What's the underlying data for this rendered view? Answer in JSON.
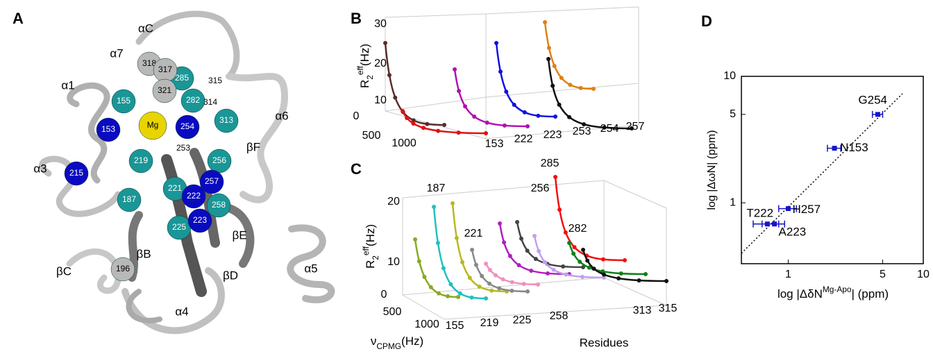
{
  "panel_labels": [
    "A",
    "B",
    "C",
    "D"
  ],
  "panel_a": {
    "structure_labels": [
      "αC",
      "α7",
      "α1",
      "α6",
      "α3",
      "βF",
      "βC",
      "βB",
      "βE",
      "βD",
      "α5",
      "α4"
    ],
    "residues": [
      "285",
      "315",
      "318",
      "317",
      "321",
      "282",
      "314",
      "155",
      "313",
      "153",
      "Mg",
      "254",
      "253",
      "219",
      "256",
      "215",
      "257",
      "221",
      "222",
      "258",
      "187",
      "225",
      "223",
      "196"
    ]
  },
  "panel_b": {
    "y_label": "R",
    "y_label_sub": "2",
    "y_label_sup": "eff",
    "y_label_unit": "(Hz)",
    "z_ticks": [
      "30",
      "20",
      "10",
      "0"
    ],
    "x_ticks": [
      "500",
      "1000"
    ],
    "residues": [
      "153",
      "222",
      "223",
      "253",
      "254",
      "257"
    ]
  },
  "panel_c": {
    "y_label": "R",
    "y_label_sub": "2",
    "y_label_sup": "eff",
    "y_label_unit": "(Hz)",
    "z_ticks": [
      "20",
      "10",
      "0"
    ],
    "x_ticks": [
      "500",
      "1000"
    ],
    "x_label": "ν",
    "x_label_sub": "CPMG",
    "x_label_unit": "(Hz)",
    "residues": [
      "155",
      "219",
      "225",
      "258",
      "313",
      "315"
    ],
    "residues_label": "Residues",
    "curve_labels": [
      "187",
      "221",
      "256",
      "282",
      "285"
    ]
  },
  "chart_data": {
    "type": "scatter",
    "x_label": "log |ΔδN",
    "x_label_sup": "Mg-Apo",
    "x_label_end": "| (ppm)",
    "y_label": "log |ΔωN| (ppm)",
    "labels": [
      "G254",
      "N153",
      "H257",
      "T222",
      "A223"
    ],
    "x": [
      4.6,
      2.2,
      1.0,
      0.7,
      0.79
    ],
    "values": [
      5.0,
      2.7,
      0.9,
      0.68,
      0.68
    ],
    "xerr": [
      0.4,
      0.25,
      0.15,
      0.15,
      0.15
    ],
    "color": "#1515c8",
    "xlim": [
      0.45,
      10
    ],
    "ylim": [
      0.33,
      10
    ],
    "xticks": [
      1,
      5,
      10
    ],
    "yticks": [
      1,
      5,
      10
    ],
    "log_scale": true
  }
}
